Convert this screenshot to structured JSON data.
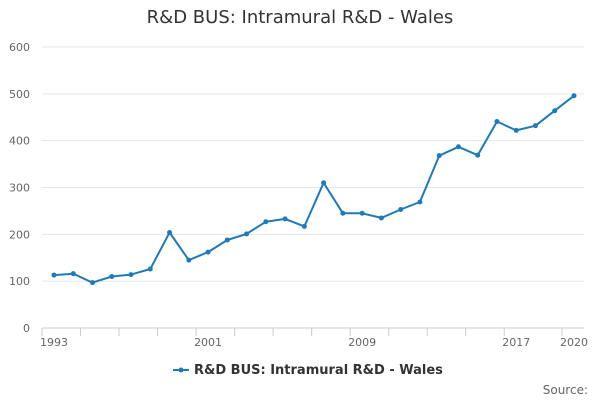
{
  "chart_data": {
    "type": "line",
    "title": "R&D BUS: Intramural R&D - Wales",
    "xlabel": "",
    "ylabel": "",
    "x": [
      1993,
      1994,
      1995,
      1996,
      1997,
      1998,
      1999,
      2000,
      2001,
      2002,
      2003,
      2004,
      2005,
      2006,
      2007,
      2008,
      2009,
      2010,
      2011,
      2012,
      2013,
      2014,
      2015,
      2016,
      2017,
      2018,
      2019,
      2020
    ],
    "x_tick_labels": [
      "1993",
      "2001",
      "2009",
      "2017",
      "2020"
    ],
    "x_tick_values": [
      1993,
      2001,
      2009,
      2017,
      2020
    ],
    "ylim": [
      0,
      600
    ],
    "y_ticks": [
      0,
      100,
      200,
      300,
      400,
      500,
      600
    ],
    "grid": true,
    "series": [
      {
        "name": "R&D BUS: Intramural R&D - Wales",
        "color": "#1f7ab8",
        "values": [
          113,
          116,
          97,
          110,
          114,
          126,
          204,
          145,
          162,
          188,
          201,
          227,
          233,
          217,
          310,
          245,
          245,
          235,
          253,
          269,
          368,
          387,
          369,
          441,
          422,
          432,
          464,
          496
        ]
      }
    ],
    "legend": {
      "position": "bottom",
      "label": "R&D BUS: Intramural R&D - Wales"
    },
    "source_label": "Source:"
  }
}
